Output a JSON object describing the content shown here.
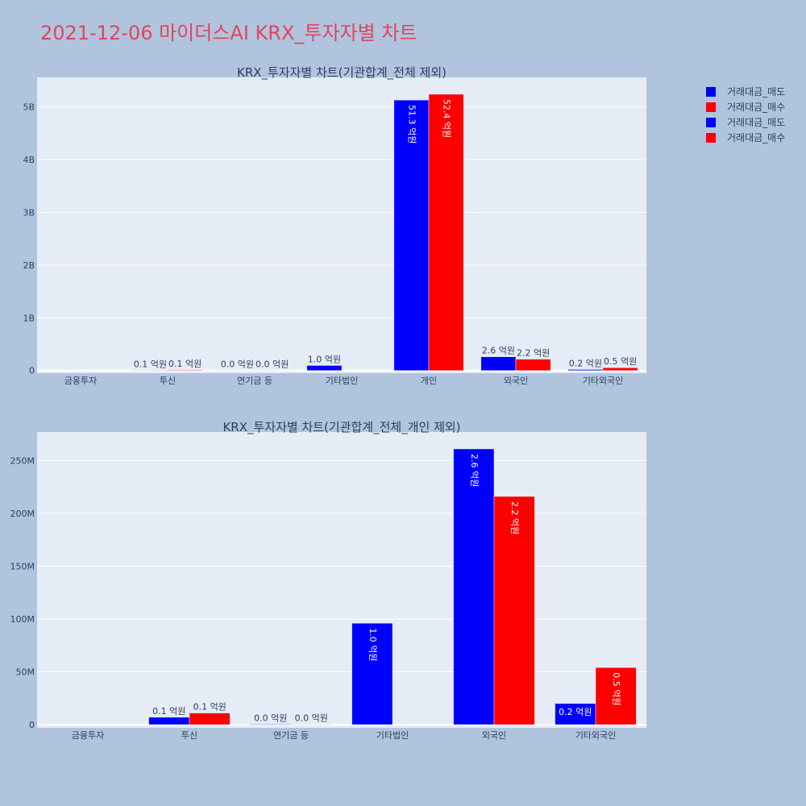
{
  "title": "2021-12-06 마이더스AI KRX_투자자별 차트",
  "legend": [
    {
      "label": "거래대금_매도",
      "color": "#0000ff"
    },
    {
      "label": "거래대금_매수",
      "color": "#ff0000"
    },
    {
      "label": "거래대금_매도",
      "color": "#0000ff"
    },
    {
      "label": "거래대금_매수",
      "color": "#ff0000"
    }
  ],
  "chart_data": [
    {
      "type": "bar",
      "title": "KRX_투자자별 차트(기관합계_전체 제외)",
      "categories": [
        "금융투자",
        "투신",
        "연기금 등",
        "기타법인",
        "개인",
        "외국인",
        "기타외국인"
      ],
      "ylim": [
        -50000000,
        5560000000
      ],
      "yticks": [
        0,
        1000000000,
        2000000000,
        3000000000,
        4000000000,
        5000000000
      ],
      "ytick_labels": [
        "0",
        "1B",
        "2B",
        "3B",
        "4B",
        "5B"
      ],
      "grid": true,
      "legend": "top-right",
      "series": [
        {
          "name": "거래대금_매도",
          "color": "#0000ff",
          "values": [
            0,
            7000000,
            500000,
            96000000,
            5130000000,
            261000000,
            20000000
          ],
          "labels": [
            "",
            "0.1 억원",
            "0.0 억원",
            "1.0 억원",
            "51.3 억원",
            "2.6 억원",
            "0.2 억원"
          ],
          "label_pos": [
            "",
            "out",
            "out",
            "out",
            "in",
            "out",
            "out"
          ]
        },
        {
          "name": "거래대금_매수",
          "color": "#ff0000",
          "values": [
            0,
            11000000,
            300000,
            0,
            5240000000,
            216000000,
            54000000
          ],
          "labels": [
            "",
            "0.1 억원",
            "0.0 억원",
            "",
            "52.4 억원",
            "2.2 억원",
            "0.5 억원"
          ],
          "label_pos": [
            "",
            "out",
            "out",
            "",
            "in",
            "out",
            "out"
          ]
        }
      ]
    },
    {
      "type": "bar",
      "title": "KRX_투자자별 차트(기관합계_전체_개인 제외)",
      "categories": [
        "금융투자",
        "투신",
        "연기금 등",
        "기타법인",
        "외국인",
        "기타외국인"
      ],
      "ylim": [
        -3000000,
        277000000
      ],
      "yticks": [
        0,
        50000000,
        100000000,
        150000000,
        200000000,
        250000000
      ],
      "ytick_labels": [
        "0",
        "50M",
        "100M",
        "150M",
        "200M",
        "250M"
      ],
      "grid": true,
      "series": [
        {
          "name": "거래대금_매도",
          "color": "#0000ff",
          "values": [
            0,
            7000000,
            500000,
            96000000,
            261000000,
            20000000
          ],
          "labels": [
            "",
            "0.1 억원",
            "0.0 억원",
            "1.0 억원",
            "2.6 억원",
            "0.2 억원"
          ],
          "label_pos": [
            "",
            "out",
            "out",
            "in",
            "in",
            "in-h"
          ]
        },
        {
          "name": "거래대금_매수",
          "color": "#ff0000",
          "values": [
            0,
            11000000,
            300000,
            0,
            216000000,
            54000000
          ],
          "labels": [
            "",
            "0.1 억원",
            "0.0 억원",
            "",
            "2.2 억원",
            "0.5 억원"
          ],
          "label_pos": [
            "",
            "out",
            "out",
            "",
            "in",
            "in"
          ]
        }
      ]
    }
  ]
}
